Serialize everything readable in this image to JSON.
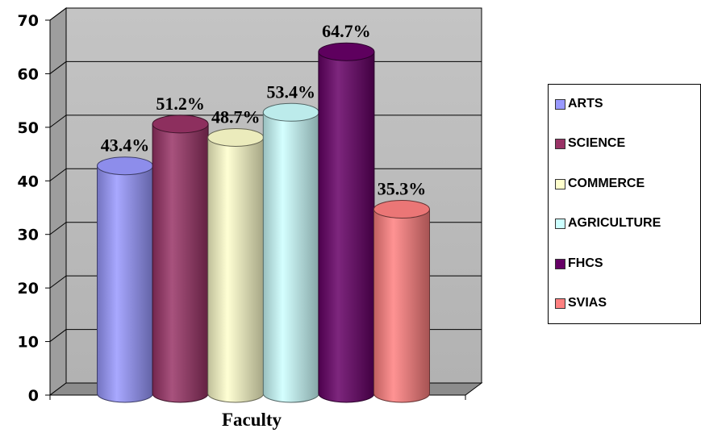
{
  "chart_data": {
    "type": "bar",
    "style": "3d-cylinder",
    "categories": [
      "ARTS",
      "SCIENCE",
      "COMMERCE",
      "AGRICULTURE",
      "FHCS",
      "SVIAS"
    ],
    "values": [
      43.4,
      51.2,
      48.7,
      53.4,
      64.7,
      35.3
    ],
    "data_labels": [
      "43.4%",
      "51.2%",
      "48.7%",
      "53.4%",
      "64.7%",
      "35.3%"
    ],
    "colors": [
      "#9999ff",
      "#993366",
      "#ffffcc",
      "#ccffff",
      "#660066",
      "#ff8080"
    ],
    "xlabel": "Faculty",
    "ylabel": "",
    "ylim": [
      0,
      70
    ],
    "yticks": [
      "0",
      "10",
      "20",
      "30",
      "40",
      "50",
      "60",
      "70"
    ],
    "grid": true,
    "legend_position": "right"
  }
}
